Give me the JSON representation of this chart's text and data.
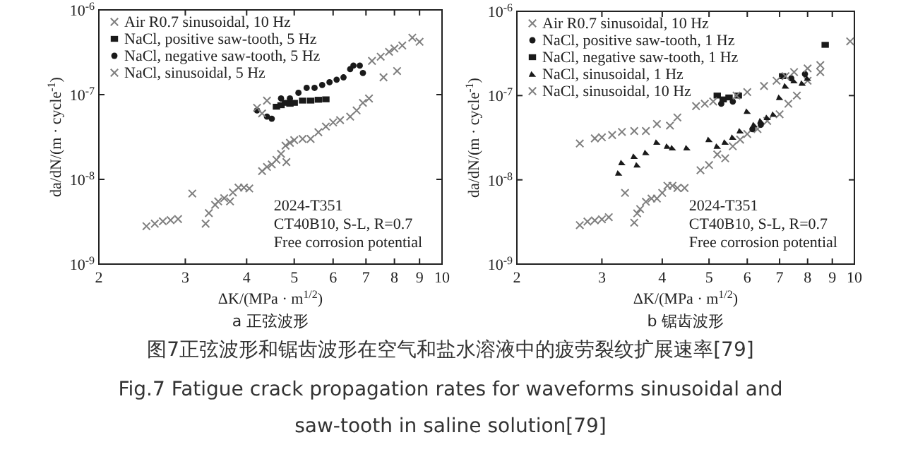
{
  "chart_data": [
    {
      "type": "scatter",
      "title": "a 正弦波形",
      "xlabel": "ΔK/(MPa · m$^{1/2}$)",
      "ylabel": "da/dN/(m · cycle$^{-1}$)",
      "log": "xy",
      "xlim": [
        2,
        10
      ],
      "ylim": [
        1e-09,
        1e-06
      ],
      "xticks": [
        2,
        3,
        4,
        5,
        6,
        7,
        8,
        9,
        10
      ],
      "yticks": [
        {
          "value": 1e-09,
          "label": "10$^{-9}$"
        },
        {
          "value": 1e-08,
          "label": "10$^{-8}$"
        },
        {
          "value": 1e-07,
          "label": "10$^{-7}$"
        },
        {
          "value": 1e-06,
          "label": "10$^{-6}$"
        }
      ],
      "legend": "top left",
      "annotations": [
        "2024-T351",
        "CT40B10, S-L, R=0.7",
        "Free corrosion potential"
      ],
      "series": [
        {
          "name": "Air R0.7 sinusoidal, 10 Hz",
          "color": "#7f7f7f",
          "marker": "cross",
          "x": [
            2.5,
            2.6,
            2.7,
            2.8,
            2.9,
            3.1,
            3.3,
            3.35,
            3.45,
            3.5,
            3.6,
            3.7,
            3.75,
            3.85,
            3.95,
            4.05,
            4.3,
            4.4,
            4.5,
            4.6,
            4.7,
            4.8,
            4.82,
            4.9,
            5.0,
            5.2,
            5.4,
            5.6,
            5.8,
            6.0,
            6.2,
            6.5,
            6.7,
            6.9,
            7.1,
            7.6,
            8.1
          ],
          "values": [
            2.8e-09,
            3e-09,
            3.2e-09,
            3.3e-09,
            3.4e-09,
            6.8e-09,
            3e-09,
            4e-09,
            5e-09,
            5.5e-09,
            6e-09,
            5.5e-09,
            7e-09,
            8e-09,
            8e-09,
            7.8e-09,
            1.25e-08,
            1.4e-08,
            1.5e-08,
            1.7e-08,
            2e-08,
            2.5e-08,
            1.6e-08,
            2.7e-08,
            2.9e-08,
            3e-08,
            3e-08,
            3.6e-08,
            4.2e-08,
            4.7e-08,
            5e-08,
            5.5e-08,
            6.5e-08,
            8e-08,
            9e-08,
            1.6e-07,
            1.9e-07
          ]
        },
        {
          "name": "NaCl, positive saw-tooth, 5 Hz",
          "color": "#1a1a1a",
          "marker": "square",
          "x": [
            4.6,
            4.7,
            4.8,
            4.9,
            5.0,
            5.2,
            5.4,
            5.6,
            5.8
          ],
          "values": [
            7.2e-08,
            7.5e-08,
            8e-08,
            7.8e-08,
            8e-08,
            8.5e-08,
            8.5e-08,
            8.7e-08,
            8.8e-08
          ]
        },
        {
          "name": "NaCl, negative saw-tooth, 5 Hz",
          "color": "#1a1a1a",
          "marker": "circle",
          "x": [
            4.2,
            4.4,
            4.5,
            4.7,
            4.9,
            5.1,
            5.3,
            5.5,
            5.7,
            5.9,
            6.1,
            6.3,
            6.5,
            6.6,
            6.8,
            6.9
          ],
          "values": [
            6.5e-08,
            5.5e-08,
            5.2e-08,
            9e-08,
            9e-08,
            1.05e-07,
            1.2e-07,
            1.2e-07,
            1.3e-07,
            1.4e-07,
            1.5e-07,
            1.6e-07,
            2e-07,
            2.2e-07,
            2.2e-07,
            1.8e-07
          ]
        },
        {
          "name": "NaCl, sinusoidal, 5 Hz",
          "color": "#7f7f7f",
          "marker": "cross",
          "x": [
            4.2,
            4.3,
            4.4,
            7.2,
            7.5,
            7.8,
            8.0,
            8.3,
            8.7,
            9.0
          ],
          "values": [
            7e-08,
            6e-08,
            8.5e-08,
            2.5e-07,
            2.8e-07,
            3.2e-07,
            3.5e-07,
            3.8e-07,
            4.7e-07,
            4.2e-07
          ]
        }
      ]
    },
    {
      "type": "scatter",
      "title": "b 锯齿波形",
      "xlabel": "ΔK/(MPa · m$^{1/2}$)",
      "ylabel": "da/dN/(m · cycle$^{-1}$)",
      "log": "xy",
      "xlim": [
        2,
        10
      ],
      "ylim": [
        1e-09,
        1e-06
      ],
      "xticks": [
        2,
        3,
        4,
        5,
        6,
        7,
        8,
        9,
        10
      ],
      "yticks": [
        {
          "value": 1e-09,
          "label": "10$^{-9}$"
        },
        {
          "value": 1e-08,
          "label": "10$^{-8}$"
        },
        {
          "value": 1e-07,
          "label": "10$^{-7}$"
        },
        {
          "value": 1e-06,
          "label": "10$^{-6}$"
        }
      ],
      "legend": "top left",
      "annotations": [
        "2024-T351",
        "CT40B10, S-L, R=0.7",
        "Free corrosion potential"
      ],
      "series": [
        {
          "name": "Air R0.7 sinusoidal, 10 Hz",
          "color": "#7f7f7f",
          "marker": "cross",
          "x": [
            2.7,
            2.8,
            2.9,
            3.0,
            3.1,
            3.35,
            3.5,
            3.55,
            3.6,
            3.7,
            3.8,
            3.9,
            4.0,
            4.1,
            4.2,
            4.3,
            4.45,
            4.8,
            5.0,
            5.2,
            5.4,
            5.6,
            5.8,
            6.0,
            6.3,
            6.6,
            7.0,
            7.3,
            7.6,
            8.0,
            8.5
          ],
          "values": [
            2.9e-09,
            3.2e-09,
            3.3e-09,
            3.4e-09,
            3.6e-09,
            7e-09,
            3.1e-09,
            4e-09,
            4.5e-09,
            5.5e-09,
            6e-09,
            6e-09,
            7e-09,
            8.5e-09,
            8.5e-09,
            8e-09,
            8e-09,
            1.3e-08,
            1.5e-08,
            2e-08,
            1.8e-08,
            2.5e-08,
            3e-08,
            3.5e-08,
            4e-08,
            5e-08,
            6e-08,
            8e-08,
            1e-07,
            1.5e-07,
            1.9e-07
          ]
        },
        {
          "name": "NaCl, positive saw-tooth, 1 Hz",
          "color": "#1a1a1a",
          "marker": "circle",
          "x": [
            5.3,
            5.6,
            6.15,
            6.4,
            7.4,
            7.9
          ],
          "values": [
            8e-08,
            8.5e-08,
            4e-08,
            4.5e-08,
            1.6e-07,
            1.8e-07
          ]
        },
        {
          "name": "NaCl, negative saw-tooth, 1 Hz",
          "color": "#1a1a1a",
          "marker": "square",
          "x": [
            5.2,
            5.35,
            5.5,
            5.75,
            7.1,
            8.7
          ],
          "values": [
            1e-07,
            9e-08,
            9.5e-08,
            1e-07,
            1.7e-07,
            4e-07
          ]
        },
        {
          "name": "NaCl, sinusoidal, 1 Hz",
          "color": "#1a1a1a",
          "marker": "triangle",
          "x": [
            3.25,
            3.3,
            3.5,
            3.55,
            3.7,
            3.9,
            4.1,
            4.2,
            4.5,
            5.0,
            5.2,
            5.4,
            5.6,
            5.8,
            6.0,
            6.2,
            6.4,
            6.6,
            6.8,
            7.0,
            7.2,
            7.5,
            7.8,
            8.0
          ],
          "values": [
            1.2e-08,
            1.6e-08,
            1.9e-08,
            1.5e-08,
            2.1e-08,
            2.8e-08,
            2.5e-08,
            2.4e-08,
            2.4e-08,
            3e-08,
            2.5e-08,
            2.8e-08,
            3.2e-08,
            3.8e-08,
            6.5e-08,
            4.5e-08,
            5e-08,
            5.5e-08,
            6e-08,
            9.5e-08,
            1.3e-07,
            1.5e-07,
            1.4e-07,
            1.6e-07
          ]
        },
        {
          "name": "NaCl, sinusoidal, 10 Hz",
          "color": "#7f7f7f",
          "marker": "cross",
          "x": [
            2.7,
            2.9,
            3.0,
            3.15,
            3.3,
            3.5,
            3.7,
            3.9,
            4.15,
            4.3,
            4.7,
            4.9,
            5.1,
            5.7,
            6.0,
            6.5,
            6.9,
            7.2,
            7.5,
            8.0,
            8.5,
            9.8
          ],
          "values": [
            2.7e-08,
            3.1e-08,
            3.2e-08,
            3.4e-08,
            3.7e-08,
            3.8e-08,
            3.8e-08,
            4.6e-08,
            4.4e-08,
            5.5e-08,
            7.5e-08,
            8e-08,
            8.5e-08,
            1e-07,
            1.1e-07,
            1.3e-07,
            1.5e-07,
            1.7e-07,
            1.9e-07,
            2.1e-07,
            2.3e-07,
            4.4e-07
          ]
        }
      ]
    },
    {
      "type": "other",
      "title": "图7正弦波形和锯齿波形在空气和盐水溶液中的疲劳裂纹扩展速率[79]",
      "subtitle": "Fig.7 Fatigue crack propagation rates for waveforms sinusoidal and saw-tooth in saline solution[79]"
    }
  ]
}
